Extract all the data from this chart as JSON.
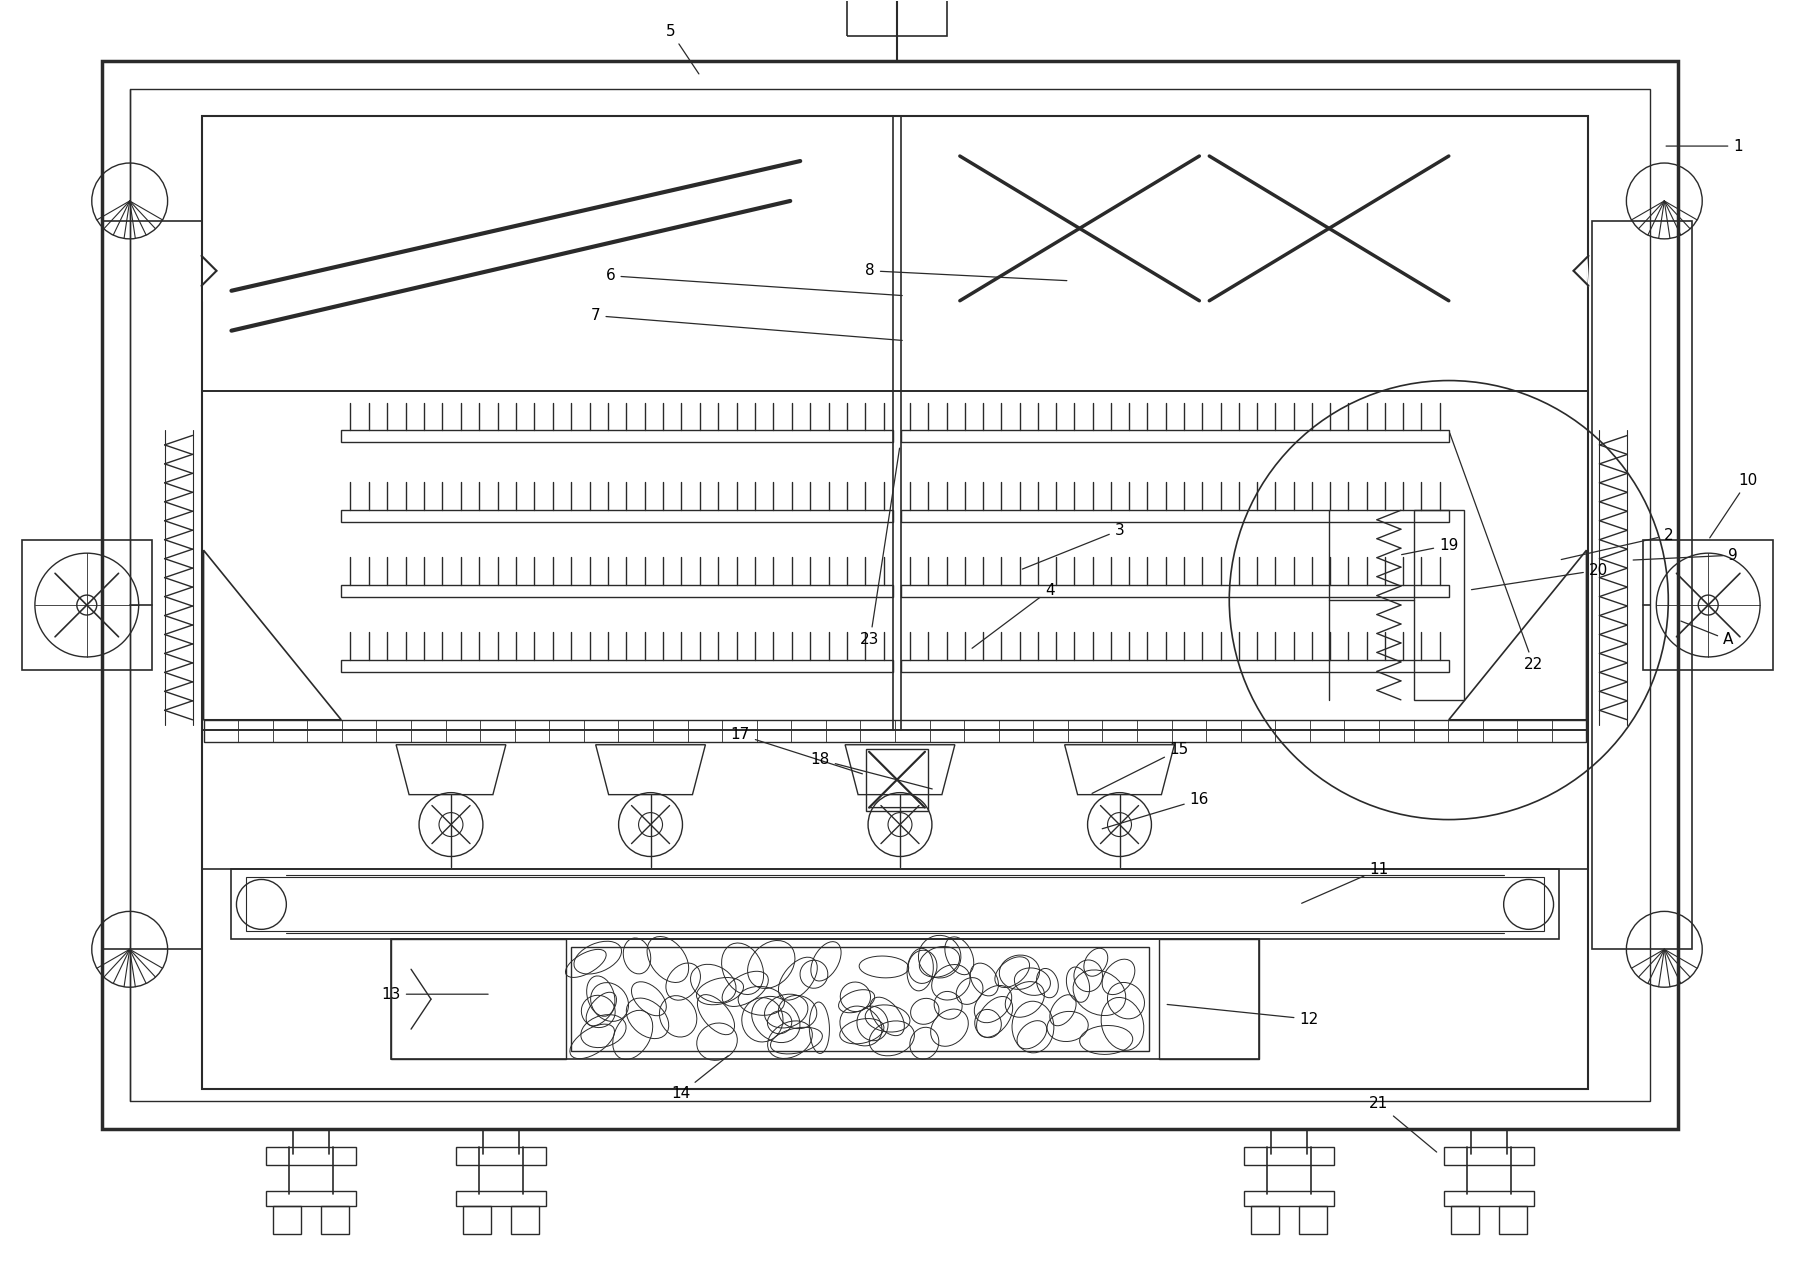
{
  "fig_width": 17.94,
  "fig_height": 12.62,
  "bg_color": "#ffffff",
  "lc": "#2a2a2a",
  "lw": 1.4
}
